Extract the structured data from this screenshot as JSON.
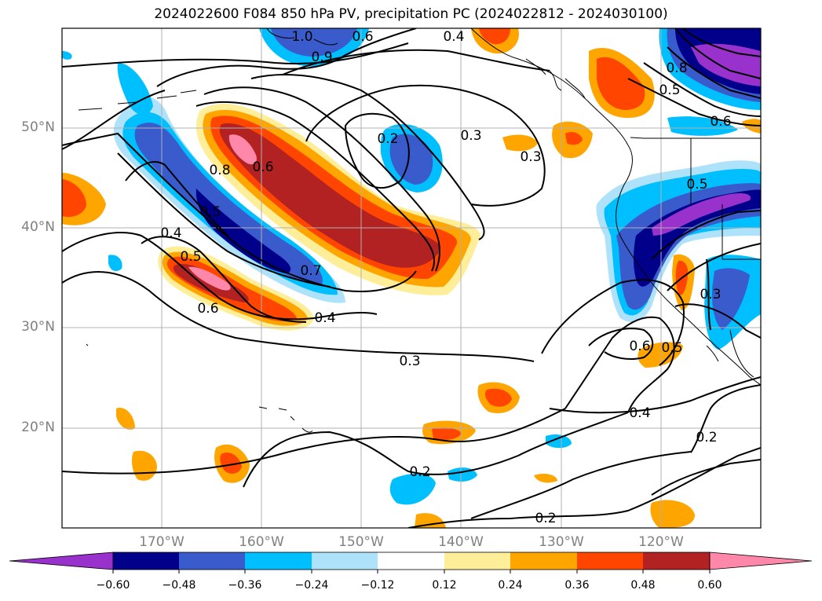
{
  "title": "2024022600 F084 850 hPa PV, precipitation PC (2024022812 - 2024030100)",
  "axes": {
    "lat_labels": [
      "20°N",
      "30°N",
      "40°N",
      "50°N"
    ],
    "lon_labels": [
      "170°W",
      "160°W",
      "150°W",
      "140°W",
      "130°W",
      "120°W"
    ]
  },
  "contour_labels": [
    "1.0",
    "0.9",
    "0.6",
    "0.4",
    "0.2",
    "0.3",
    "0.3",
    "0.8",
    "0.6",
    "0.5",
    "0.4",
    "0.5",
    "0.7",
    "0.6",
    "0.4",
    "0.3",
    "0.2",
    "0.2",
    "0.6",
    "0.5",
    "0.4",
    "0.2",
    "0.8",
    "0.5",
    "0.6",
    "0.5",
    "0.3"
  ],
  "colorbar": {
    "ticks": [
      "−0.60",
      "−0.48",
      "−0.36",
      "−0.24",
      "−0.12",
      "0.12",
      "0.24",
      "0.36",
      "0.48",
      "0.60"
    ],
    "colors": [
      "#9932cc",
      "#00008b",
      "#3a5bcc",
      "#00bfff",
      "#aee2fa",
      "#ffffff",
      "#ffee99",
      "#ffa500",
      "#ff4500",
      "#b22222",
      "#ff88aa"
    ],
    "extend": "both"
  },
  "field_colors": {
    "purple": "#9932cc",
    "navy": "#00008b",
    "blue": "#3a5bcc",
    "cyan": "#00bfff",
    "lightblue": "#aee2fa",
    "yellow": "#ffee99",
    "orange": "#ffa500",
    "redorange": "#ff4500",
    "darkred": "#b22222",
    "pink": "#ff88aa"
  }
}
